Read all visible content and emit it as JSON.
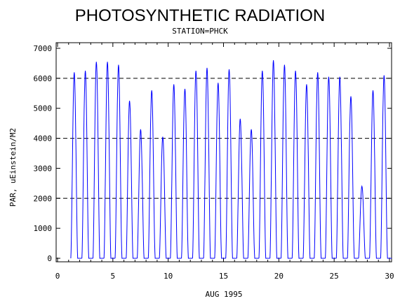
{
  "chart_data": {
    "type": "line",
    "title": "PHOTOSYNTHETIC RADIATION",
    "subtitle": "STATION=PHCK",
    "xlabel": "AUG 1995",
    "ylabel": "PAR, uEinstein/M2",
    "xlim": [
      0,
      30
    ],
    "ylim": [
      0,
      7000
    ],
    "x_ticks": [
      0,
      5,
      10,
      15,
      20,
      25,
      30
    ],
    "y_ticks": [
      0,
      1000,
      2000,
      3000,
      4000,
      5000,
      6000,
      7000
    ],
    "reference_lines_y": [
      2000,
      4000,
      6000
    ],
    "reference_line_style": "dashed",
    "grid": false,
    "series": [
      {
        "color": "#0000ff",
        "daily_peaks": [
          {
            "day": 1,
            "peak": 6200
          },
          {
            "day": 2,
            "peak": 6250
          },
          {
            "day": 3,
            "peak": 6550
          },
          {
            "day": 4,
            "peak": 6550
          },
          {
            "day": 5,
            "peak": 6450
          },
          {
            "day": 6,
            "peak": 5250
          },
          {
            "day": 7,
            "peak": 4300
          },
          {
            "day": 8,
            "peak": 5600
          },
          {
            "day": 9,
            "peak": 4050
          },
          {
            "day": 10,
            "peak": 5800
          },
          {
            "day": 11,
            "peak": 5650
          },
          {
            "day": 12,
            "peak": 6250
          },
          {
            "day": 13,
            "peak": 6350
          },
          {
            "day": 14,
            "peak": 5850
          },
          {
            "day": 15,
            "peak": 6300
          },
          {
            "day": 16,
            "peak": 4650
          },
          {
            "day": 17,
            "peak": 4300
          },
          {
            "day": 18,
            "peak": 6250
          },
          {
            "day": 19,
            "peak": 6600
          },
          {
            "day": 20,
            "peak": 6450
          },
          {
            "day": 21,
            "peak": 6250
          },
          {
            "day": 22,
            "peak": 5800
          },
          {
            "day": 23,
            "peak": 6200
          },
          {
            "day": 24,
            "peak": 6050
          },
          {
            "day": 25,
            "peak": 6050
          },
          {
            "day": 26,
            "peak": 5400
          },
          {
            "day": 27,
            "peak": 2400
          },
          {
            "day": 28,
            "peak": 5600
          },
          {
            "day": 29,
            "peak": 6100
          }
        ]
      }
    ]
  }
}
